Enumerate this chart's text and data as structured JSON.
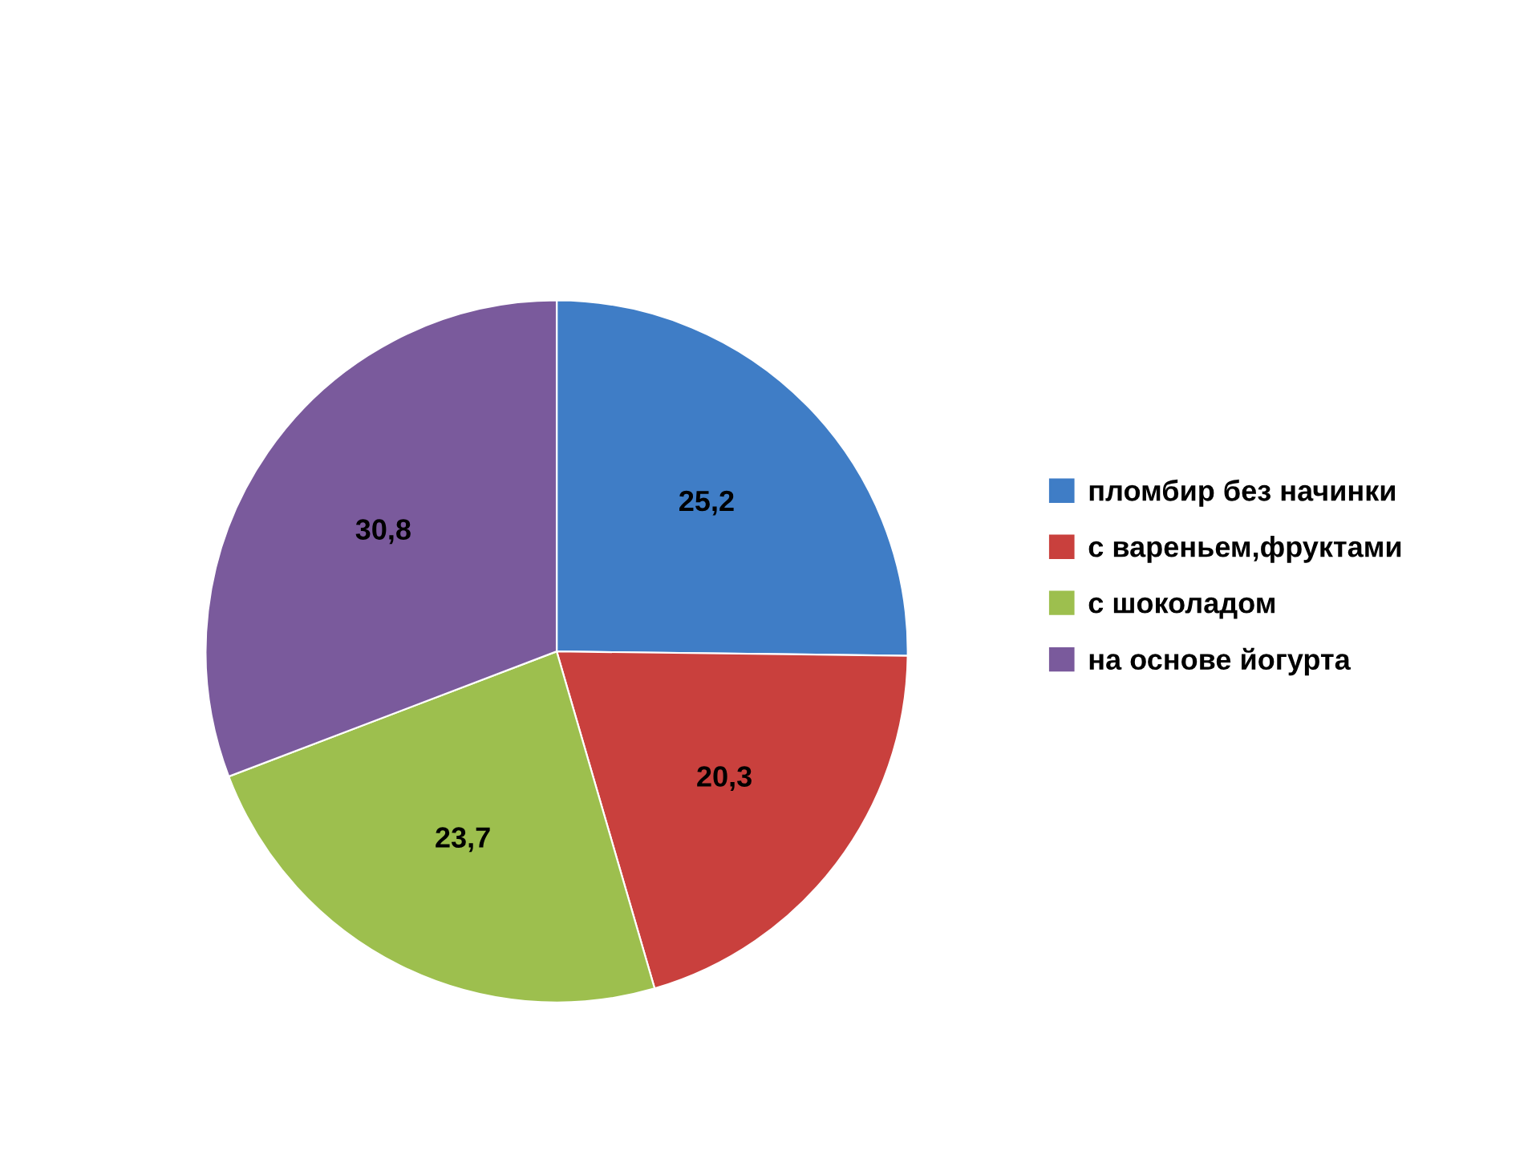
{
  "chart_data": {
    "type": "pie",
    "categories": [
      "пломбир без начинки",
      "с вареньем,фруктами",
      "с шоколадом",
      "на основе йогурта"
    ],
    "values": [
      25.2,
      20.3,
      23.7,
      30.8
    ],
    "value_labels": [
      "25,2",
      "20,3",
      "23,7",
      "30,8"
    ],
    "colors": [
      "#3f7dc6",
      "#c9403d",
      "#9dbf4e",
      "#7a5a9c"
    ],
    "legend": "right"
  }
}
